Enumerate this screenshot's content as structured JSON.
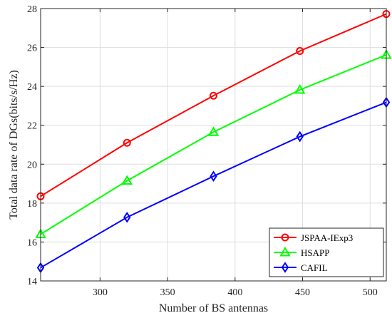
{
  "chart_data": {
    "type": "line",
    "title": "",
    "xlabel": "Number of BS antennas",
    "ylabel": "Total data rate of DGs(bits/s/Hz)",
    "x": [
      256,
      320,
      384,
      448,
      512
    ],
    "xlim": [
      256,
      512
    ],
    "ylim": [
      14,
      28
    ],
    "xticks": [
      300,
      350,
      400,
      450,
      500
    ],
    "yticks": [
      14,
      16,
      18,
      20,
      22,
      24,
      26,
      28
    ],
    "grid": true,
    "legend_position": "bottom-right",
    "series": [
      {
        "name": "JSPAA-IExp3",
        "color": "#ff0000",
        "marker": "circle",
        "values": [
          18.35,
          21.1,
          23.52,
          25.82,
          27.72
        ]
      },
      {
        "name": "HSAPP",
        "color": "#00ff00",
        "marker": "triangle",
        "values": [
          16.4,
          19.15,
          21.65,
          23.82,
          25.62
        ]
      },
      {
        "name": "CAFIL",
        "color": "#0000ff",
        "marker": "diamond",
        "values": [
          14.68,
          17.27,
          19.38,
          21.42,
          23.18
        ]
      }
    ]
  }
}
